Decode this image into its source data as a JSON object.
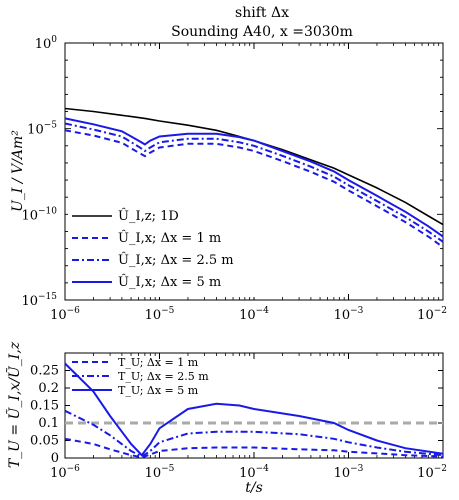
{
  "chart_data": [
    {
      "type": "line",
      "title_line1": "shift Δx",
      "title_line2": "Sounding A40, x =3030m",
      "xlabel": "",
      "ylabel": "U_I / V/Am²",
      "xscale": "log",
      "yscale": "log",
      "xlim": [
        1e-06,
        0.01
      ],
      "ylim": [
        1e-15,
        1
      ],
      "x_ticks": [
        {
          "value": 1e-06,
          "base": "10",
          "exp": "−6"
        },
        {
          "value": 1e-05,
          "base": "10",
          "exp": "−5"
        },
        {
          "value": 0.0001,
          "base": "10",
          "exp": "−4"
        },
        {
          "value": 0.001,
          "base": "10",
          "exp": "−3"
        },
        {
          "value": 0.01,
          "base": "10",
          "exp": "−2"
        }
      ],
      "y_ticks": [
        {
          "value": 1,
          "base": "10",
          "exp": "0"
        },
        {
          "value": 1e-05,
          "base": "10",
          "exp": "−5"
        },
        {
          "value": 1e-10,
          "base": "10",
          "exp": "−10"
        },
        {
          "value": 1e-15,
          "base": "10",
          "exp": "−15"
        }
      ],
      "legend_position": "bottom-left",
      "series": [
        {
          "name": "Û_I,z; 1D",
          "color": "#000000",
          "dash": "solid",
          "x": [
            1e-06,
            2e-06,
            4e-06,
            7e-06,
            1e-05,
            2e-05,
            4e-05,
            7e-05,
            0.0001,
            0.0002,
            0.0004,
            0.0007,
            0.001,
            0.002,
            0.004,
            0.007,
            0.01
          ],
          "y": [
            0.00015,
            0.0001,
            6e-05,
            4e-05,
            2.8e-05,
            1.6e-05,
            8e-06,
            3.5e-06,
            2e-06,
            6e-07,
            1.5e-07,
            5e-08,
            2e-08,
            3.5e-09,
            5e-10,
            8e-11,
            2.5e-11
          ]
        },
        {
          "name": "Û_I,x; Δx = 1 m",
          "color": "#1a1ae6",
          "dash": "dashed",
          "x": [
            1e-06,
            2e-06,
            4e-06,
            6e-06,
            7e-06,
            8e-06,
            1e-05,
            2e-05,
            4e-05,
            7e-05,
            0.0001,
            0.0002,
            0.0004,
            0.0007,
            0.001,
            0.002,
            0.004,
            0.007,
            0.01
          ],
          "y": [
            8e-06,
            4e-06,
            1.5e-06,
            4e-07,
            2.5e-07,
            4e-07,
            8e-07,
            1.3e-06,
            1.3e-06,
            8e-07,
            5e-07,
            1.3e-07,
            3e-08,
            8e-09,
            2.5e-09,
            3e-10,
            3.5e-11,
            5e-12,
            1.2e-12
          ]
        },
        {
          "name": "Û_I,x; Δx = 2.5 m",
          "color": "#1a1ae6",
          "dash": "dashdot",
          "x": [
            1e-06,
            2e-06,
            4e-06,
            6e-06,
            7e-06,
            8e-06,
            1e-05,
            2e-05,
            4e-05,
            7e-05,
            0.0001,
            0.0002,
            0.0004,
            0.0007,
            0.001,
            0.002,
            0.004,
            0.007,
            0.01
          ],
          "y": [
            2e-05,
            9e-06,
            3.5e-06,
            9e-07,
            5e-07,
            8e-07,
            1.6e-06,
            2.6e-06,
            2.6e-06,
            1.6e-06,
            1e-06,
            2.6e-07,
            6e-08,
            1.6e-08,
            5e-09,
            6e-10,
            7e-11,
            1e-11,
            2.5e-12
          ]
        },
        {
          "name": "Û_I,x; Δx = 5 m",
          "color": "#1a1ae6",
          "dash": "solid",
          "x": [
            1e-06,
            2e-06,
            4e-06,
            6e-06,
            7e-06,
            8e-06,
            1e-05,
            2e-05,
            4e-05,
            7e-05,
            0.0001,
            0.0002,
            0.0004,
            0.0007,
            0.001,
            0.002,
            0.004,
            0.007,
            0.01
          ],
          "y": [
            4e-05,
            1.8e-05,
            7e-06,
            2e-06,
            1.2e-06,
            2e-06,
            3.5e-06,
            5e-06,
            5e-06,
            3.2e-06,
            2e-06,
            5e-07,
            1.2e-07,
            3.2e-08,
            1e-08,
            1.2e-09,
            1.4e-10,
            2e-11,
            5e-12
          ]
        }
      ]
    },
    {
      "type": "line",
      "xlabel": "t/s",
      "ylabel": "T_U = Ũ_I,x/Ũ_I,z",
      "xscale": "log",
      "yscale": "linear",
      "xlim": [
        1e-06,
        0.01
      ],
      "ylim": [
        0,
        0.3
      ],
      "x_ticks": [
        {
          "value": 1e-06,
          "base": "10",
          "exp": "−6"
        },
        {
          "value": 1e-05,
          "base": "10",
          "exp": "−5"
        },
        {
          "value": 0.0001,
          "base": "10",
          "exp": "−4"
        },
        {
          "value": 0.001,
          "base": "10",
          "exp": "−3"
        },
        {
          "value": 0.01,
          "base": "10",
          "exp": "−2"
        }
      ],
      "y_ticks": [
        {
          "value": 0,
          "label": "0"
        },
        {
          "value": 0.05,
          "label": "0.05"
        },
        {
          "value": 0.1,
          "label": "0.1"
        },
        {
          "value": 0.15,
          "label": "0.15"
        },
        {
          "value": 0.2,
          "label": "0.2"
        },
        {
          "value": 0.25,
          "label": "0.25"
        }
      ],
      "legend_position": "top-left",
      "reference_line": {
        "y": 0.1,
        "color": "#aaaaaa",
        "dash": "dashed"
      },
      "series": [
        {
          "name": "T_U; Δx = 1 m",
          "color": "#1a1ae6",
          "dash": "dashed",
          "x": [
            1e-06,
            2e-06,
            3e-06,
            5e-06,
            6.5e-06,
            8e-06,
            1e-05,
            2e-05,
            4e-05,
            7e-05,
            0.0001,
            0.0003,
            0.0007,
            0.001,
            0.002,
            0.004,
            0.01
          ],
          "y": [
            0.055,
            0.04,
            0.025,
            0.008,
            0.002,
            0.01,
            0.02,
            0.028,
            0.03,
            0.03,
            0.03,
            0.025,
            0.022,
            0.018,
            0.013,
            0.008,
            0.004
          ]
        },
        {
          "name": "T_U; Δx = 2.5 m",
          "color": "#1a1ae6",
          "dash": "dashdot",
          "x": [
            1e-06,
            2e-06,
            3e-06,
            5e-06,
            6.5e-06,
            8e-06,
            1e-05,
            2e-05,
            4e-05,
            7e-05,
            0.0001,
            0.0003,
            0.0007,
            0.001,
            0.002,
            0.004,
            0.01
          ],
          "y": [
            0.135,
            0.095,
            0.065,
            0.02,
            0.004,
            0.02,
            0.045,
            0.07,
            0.075,
            0.075,
            0.075,
            0.068,
            0.055,
            0.045,
            0.03,
            0.018,
            0.008
          ]
        },
        {
          "name": "T_U; Δx = 5 m",
          "color": "#1a1ae6",
          "dash": "solid",
          "x": [
            1e-06,
            2e-06,
            3e-06,
            5e-06,
            6.5e-06,
            8e-06,
            1e-05,
            2e-05,
            4e-05,
            7e-05,
            0.0001,
            0.0003,
            0.0007,
            0.001,
            0.002,
            0.004,
            0.01
          ],
          "y": [
            0.27,
            0.19,
            0.12,
            0.04,
            0.008,
            0.04,
            0.085,
            0.14,
            0.155,
            0.15,
            0.14,
            0.12,
            0.1,
            0.08,
            0.05,
            0.028,
            0.012
          ]
        }
      ]
    }
  ]
}
